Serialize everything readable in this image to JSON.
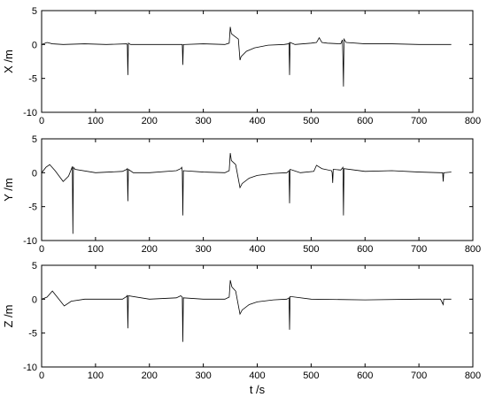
{
  "chart_data": [
    {
      "type": "line",
      "y_label": "X /m",
      "xlim": [
        0,
        800
      ],
      "xticks": [
        0,
        100,
        200,
        300,
        400,
        500,
        600,
        700,
        800
      ],
      "ylim": [
        -10,
        5
      ],
      "yticks": [
        -10,
        -5,
        0,
        5
      ],
      "color": "#000000",
      "x": [
        0,
        10,
        20,
        40,
        80,
        120,
        158,
        159,
        160,
        161,
        165,
        200,
        240,
        260,
        261,
        262,
        263,
        300,
        340,
        348,
        350,
        352,
        355,
        365,
        368,
        370,
        380,
        395,
        420,
        450,
        458,
        459,
        460,
        461,
        470,
        500,
        510,
        515,
        520,
        530,
        555,
        558,
        559,
        560,
        561,
        565,
        600,
        650,
        700,
        760
      ],
      "values": [
        0,
        0.3,
        0.1,
        0,
        0.1,
        0,
        0.1,
        0,
        -4.5,
        0.2,
        0,
        0,
        0,
        0,
        0,
        -3,
        0,
        0.1,
        0,
        0.2,
        2.6,
        1.6,
        1.4,
        0.8,
        -2.3,
        -1.8,
        -1,
        -0.5,
        -0.1,
        0,
        0.1,
        0.2,
        -4.5,
        0.3,
        0,
        0.2,
        0.3,
        1.0,
        0.3,
        0.2,
        0.1,
        0.7,
        -2,
        -6.2,
        0.8,
        0.3,
        0.1,
        0.1,
        0,
        0
      ]
    },
    {
      "type": "line",
      "y_label": "Y /m",
      "xlim": [
        0,
        800
      ],
      "xticks": [
        0,
        100,
        200,
        300,
        400,
        500,
        600,
        700,
        800
      ],
      "ylim": [
        -10,
        5
      ],
      "yticks": [
        -10,
        -5,
        0,
        5
      ],
      "color": "#000000",
      "x": [
        0,
        8,
        15,
        25,
        40,
        50,
        55,
        57,
        58,
        59,
        62,
        100,
        150,
        158,
        159,
        160,
        161,
        170,
        200,
        250,
        258,
        260,
        261,
        262,
        263,
        300,
        340,
        348,
        350,
        352,
        360,
        368,
        372,
        385,
        400,
        430,
        455,
        459,
        460,
        461,
        480,
        505,
        510,
        520,
        538,
        539,
        540,
        541,
        555,
        559,
        560,
        561,
        600,
        650,
        700,
        740,
        744,
        745,
        746,
        760
      ],
      "values": [
        0,
        0.8,
        1.2,
        0.3,
        -1.3,
        -0.5,
        0.5,
        0.9,
        -9,
        0.8,
        0.5,
        0,
        0.2,
        0.5,
        0.6,
        -4.2,
        0.5,
        0,
        0,
        0.3,
        0.6,
        0.8,
        0.2,
        -6.3,
        0.3,
        0.1,
        0,
        0.3,
        2.9,
        1.8,
        1.2,
        -2.2,
        -1.6,
        -0.8,
        -0.4,
        -0.1,
        0,
        0.3,
        -4.5,
        0.5,
        0,
        0.2,
        1.1,
        0.6,
        0.3,
        0,
        -1.5,
        0.5,
        0.4,
        0.8,
        -6.3,
        0.6,
        0.2,
        0.3,
        0.1,
        0,
        0,
        -1.3,
        0,
        0.1
      ]
    },
    {
      "type": "line",
      "y_label": "Z /m",
      "x_label": "t /s",
      "xlim": [
        0,
        800
      ],
      "xticks": [
        0,
        100,
        200,
        300,
        400,
        500,
        600,
        700,
        800
      ],
      "ylim": [
        -10,
        5
      ],
      "yticks": [
        -10,
        -5,
        0,
        5
      ],
      "color": "#000000",
      "x": [
        0,
        10,
        20,
        30,
        42,
        55,
        80,
        150,
        158,
        159,
        160,
        161,
        200,
        250,
        258,
        261,
        262,
        263,
        300,
        340,
        348,
        350,
        353,
        360,
        368,
        372,
        385,
        400,
        430,
        455,
        459,
        460,
        461,
        500,
        600,
        700,
        740,
        745,
        746,
        760
      ],
      "values": [
        0,
        0.3,
        1.2,
        0.2,
        -1.0,
        -0.3,
        0,
        0,
        0.4,
        0.6,
        -4.3,
        0.5,
        0,
        0.2,
        0.5,
        0.3,
        -6.3,
        0.2,
        0,
        0,
        0.3,
        2.8,
        1.8,
        1.2,
        -2.2,
        -1.6,
        -0.8,
        -0.4,
        -0.1,
        0,
        0.2,
        -4.5,
        0.4,
        0,
        -0.1,
        0,
        0,
        -0.8,
        0,
        0
      ]
    }
  ]
}
